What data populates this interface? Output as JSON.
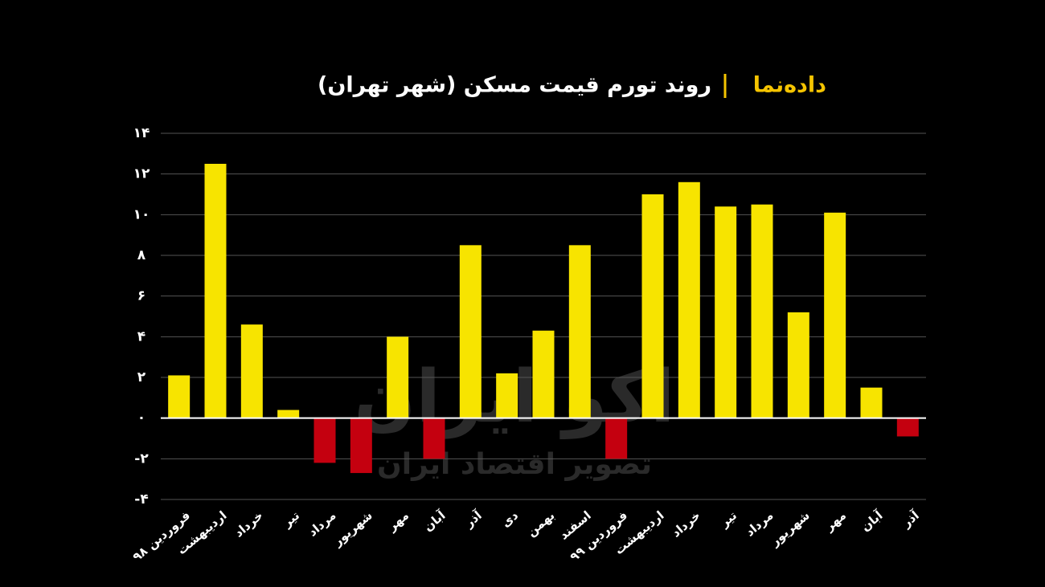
{
  "chart_data": {
    "type": "bar",
    "brand": "داده‌نما",
    "title": "روند تورم قیمت مسکن (شهر تهران)",
    "watermark": [
      "اکو ایران",
      "تصویر اقتصاد ایران"
    ],
    "categories": [
      "فروردین ۹۸",
      "اردیبهشت",
      "خرداد",
      "تیر",
      "مرداد",
      "شهریور",
      "مهر",
      "آبان",
      "آذر",
      "دی",
      "بهمن",
      "اسفند",
      "فروردین ۹۹",
      "اردیبهشت",
      "خرداد",
      "تیر",
      "مرداد",
      "شهریور",
      "مهر",
      "آبان",
      "آذر"
    ],
    "values": [
      2.1,
      12.5,
      4.6,
      0.4,
      -2.2,
      -2.7,
      4.0,
      -2.0,
      8.5,
      2.2,
      4.3,
      8.5,
      -2.0,
      11.0,
      11.6,
      10.4,
      10.5,
      5.2,
      10.1,
      1.5,
      -0.9
    ],
    "positive_color": "#f7e400",
    "negative_color": "#c4000f",
    "brand_color": "#f5c400",
    "ylim": [
      -4,
      14
    ],
    "yticks": [
      {
        "value": -4,
        "label": "-۴"
      },
      {
        "value": -2,
        "label": "-۲"
      },
      {
        "value": 0,
        "label": "۰"
      },
      {
        "value": 2,
        "label": "۲"
      },
      {
        "value": 4,
        "label": "۴"
      },
      {
        "value": 6,
        "label": "۶"
      },
      {
        "value": 8,
        "label": "۸"
      },
      {
        "value": 10,
        "label": "۱۰"
      },
      {
        "value": 12,
        "label": "۱۲"
      },
      {
        "value": 14,
        "label": "۱۴"
      }
    ],
    "grid": true
  }
}
